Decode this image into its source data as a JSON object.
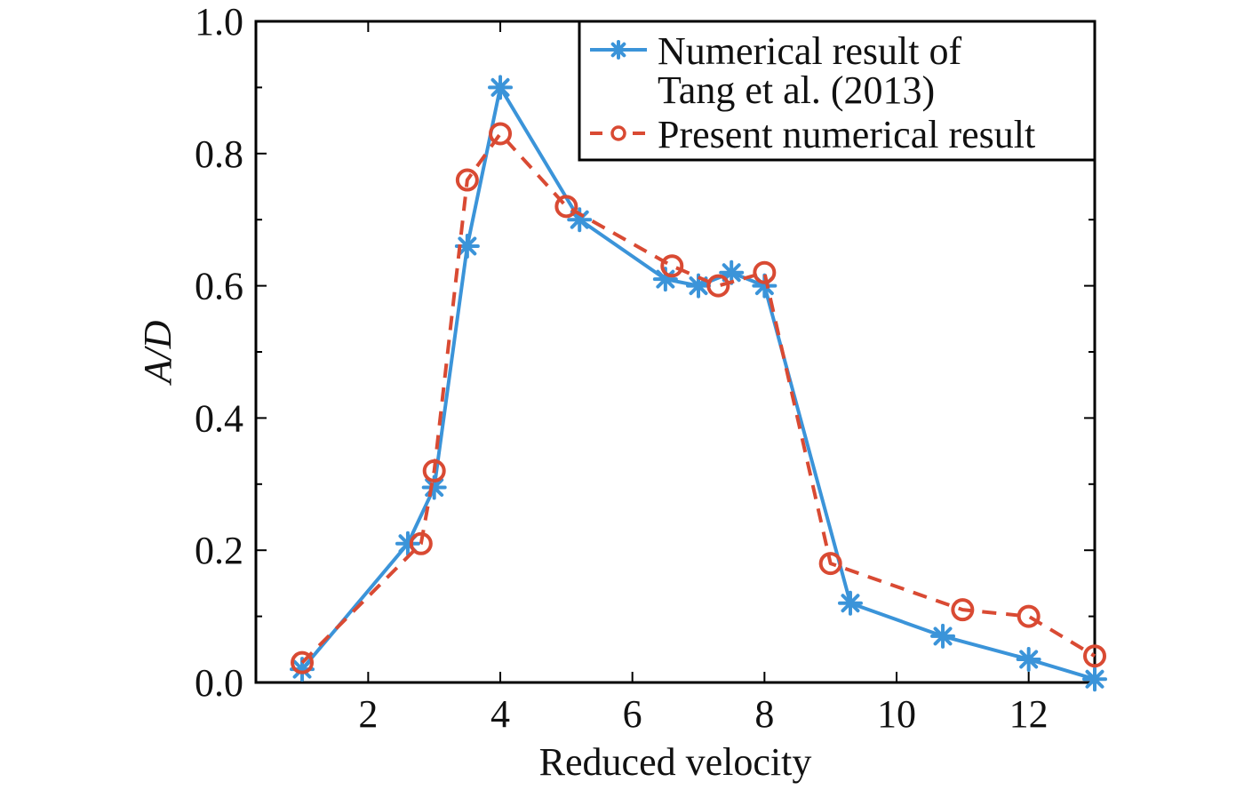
{
  "chart_data": {
    "type": "line",
    "xlabel": "Reduced velocity",
    "ylabel": "A/D",
    "xlim": [
      0.3,
      13.0
    ],
    "ylim": [
      0.0,
      1.0
    ],
    "xticks": [
      "2",
      "4",
      "6",
      "8",
      "10",
      "12"
    ],
    "yticks": [
      "0.0",
      "0.2",
      "0.4",
      "0.6",
      "0.8",
      "1.0"
    ],
    "grid": false,
    "legend_position": "top-right",
    "series": [
      {
        "name": "Numerical result of Tang et al. (2013)",
        "legend_lines": [
          "Numerical result of",
          "Tang et al. (2013)"
        ],
        "color": "#3b94d9",
        "marker": "asterisk",
        "line_style": "solid",
        "x": [
          1.0,
          2.6,
          3.0,
          3.5,
          4.0,
          5.2,
          6.5,
          7.0,
          7.5,
          8.0,
          9.3,
          10.7,
          12.0,
          13.0
        ],
        "y": [
          0.02,
          0.21,
          0.295,
          0.66,
          0.9,
          0.7,
          0.61,
          0.6,
          0.62,
          0.6,
          0.12,
          0.07,
          0.035,
          0.005
        ]
      },
      {
        "name": "Present numerical result",
        "legend_lines": [
          "Present numerical result"
        ],
        "color": "#d94a33",
        "marker": "circle",
        "line_style": "dashed",
        "x": [
          1.0,
          2.8,
          3.0,
          3.5,
          4.0,
          5.0,
          6.6,
          7.3,
          8.0,
          9.0,
          11.0,
          12.0,
          13.0
        ],
        "y": [
          0.03,
          0.21,
          0.32,
          0.76,
          0.83,
          0.72,
          0.63,
          0.6,
          0.62,
          0.18,
          0.11,
          0.1,
          0.04
        ]
      }
    ]
  }
}
